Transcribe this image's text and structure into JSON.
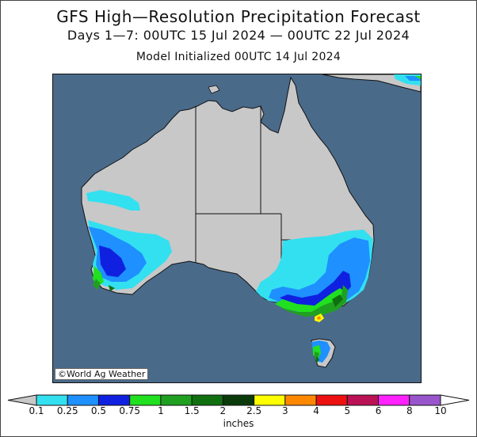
{
  "title": "GFS High—Resolution Precipitation Forecast",
  "subtitle": "Days 1—7: 00UTC 15 Jul 2024 — 00UTC 22 Jul 2024",
  "init": "Model Initialized 00UTC 14 Jul 2024",
  "copyright": "©World Ag Weather",
  "legend": {
    "units": "inches",
    "ticks": [
      "0.1",
      "0.25",
      "0.5",
      "0.75",
      "1",
      "1.5",
      "2",
      "2.5",
      "3",
      "4",
      "5",
      "6",
      "8",
      "10"
    ],
    "colors": [
      "#33e0f0",
      "#1e90ff",
      "#1020e0",
      "#20e020",
      "#20a020",
      "#107010",
      "#0a3a0a",
      "#ffff00",
      "#ff8800",
      "#ee1111",
      "#bb1155",
      "#ff22ff",
      "#9955cc"
    ],
    "below_color": "#c8c8c8",
    "above_color": "#ffffff"
  },
  "map_colors": {
    "ocean": "#4a6a8a",
    "land": "#c8c8c8",
    "border": "#111111"
  }
}
